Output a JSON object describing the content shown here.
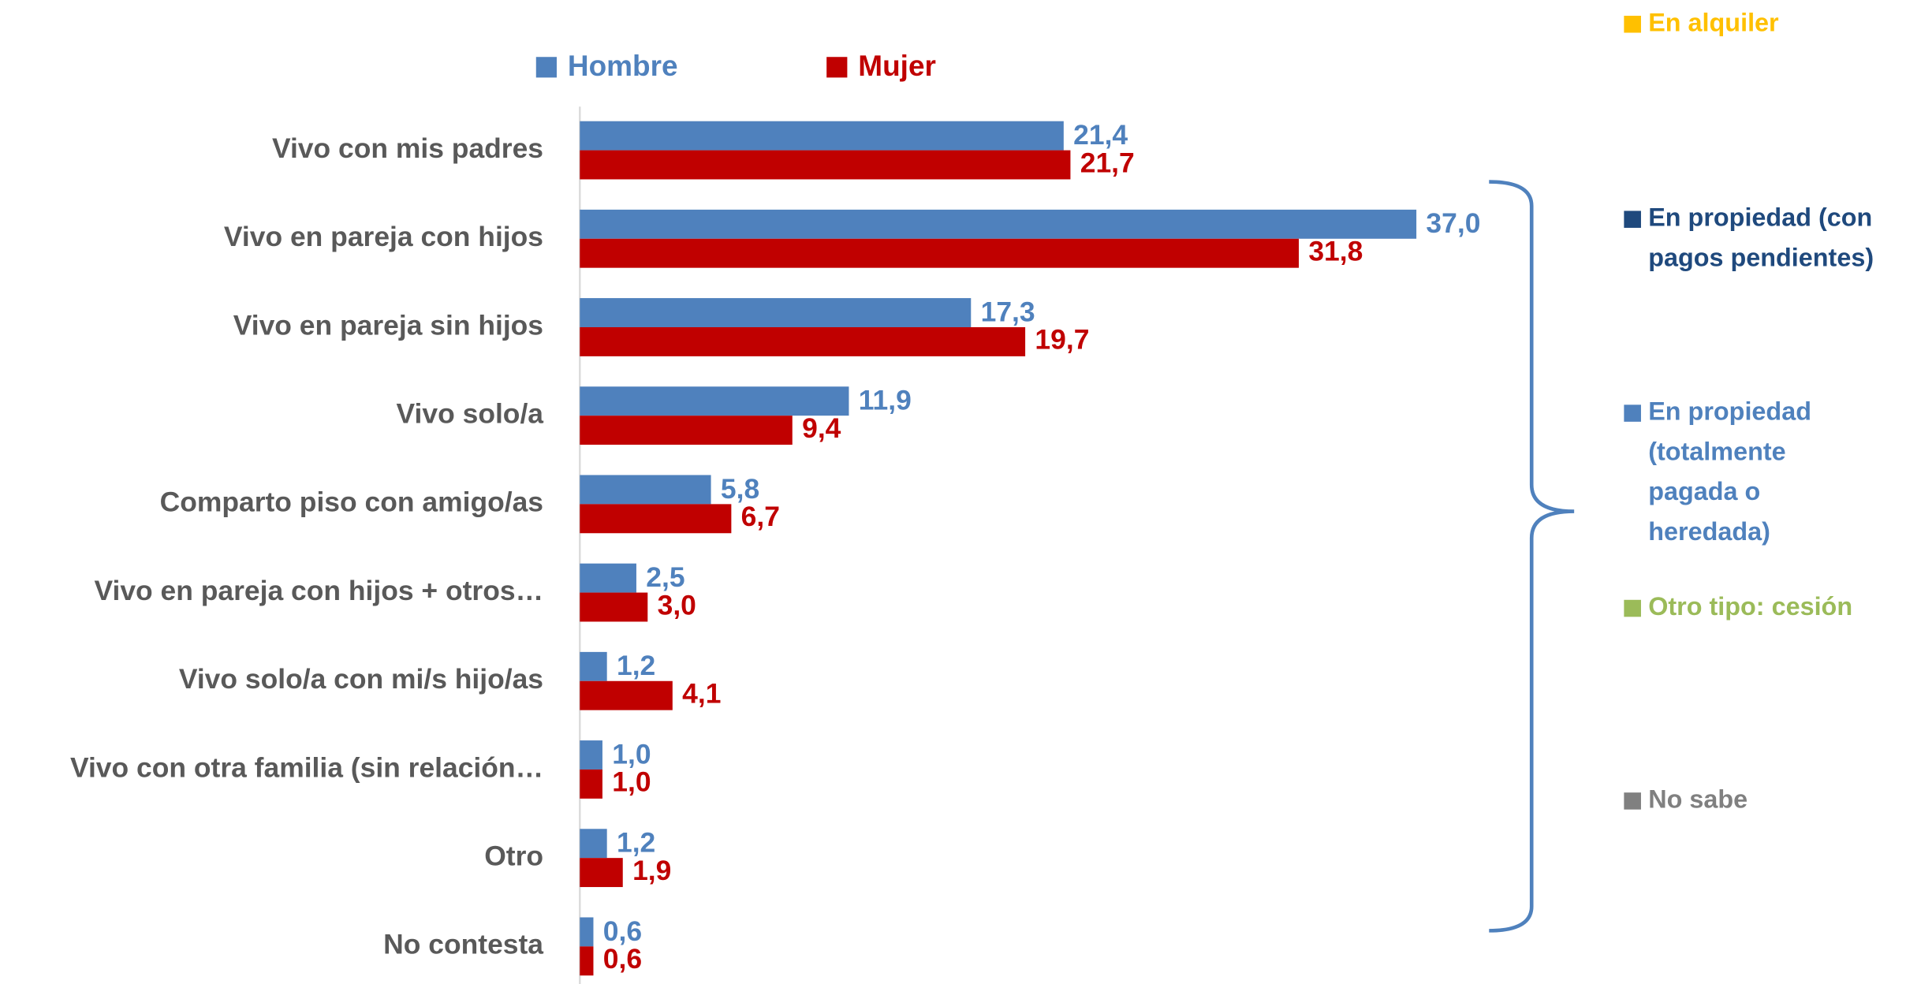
{
  "chart_data": {
    "type": "hbar",
    "categories": [
      "Vivo con mis padres",
      "Vivo en pareja con hijos",
      "Vivo en pareja sin hijos",
      "Vivo solo/a",
      "Comparto piso con amigo/as",
      "Vivo en pareja con hijos + otros…",
      "Vivo solo/a con mi/s hijo/as",
      "Vivo con otra familia (sin relación…",
      "Otro",
      "No contesta"
    ],
    "series": [
      {
        "name": "Hombre",
        "color": "#4f81bd",
        "values": [
          21.4,
          37.0,
          17.3,
          11.9,
          5.8,
          2.5,
          1.2,
          1.0,
          1.2,
          0.6
        ],
        "value_labels": [
          "21,4",
          "37,0",
          "17,3",
          "11,9",
          "5,8",
          "2,5",
          "1,2",
          "1,0",
          "1,2",
          "0,6"
        ]
      },
      {
        "name": "Mujer",
        "color": "#c00000",
        "values": [
          21.7,
          31.8,
          19.7,
          9.4,
          6.7,
          3.0,
          4.1,
          1.0,
          1.9,
          0.6
        ],
        "value_labels": [
          "21,7",
          "31,8",
          "19,7",
          "9,4",
          "6,7",
          "3,0",
          "4,1",
          "1,0",
          "1,9",
          "0,6"
        ]
      }
    ],
    "xlim": [
      0,
      40
    ],
    "legend2": [
      {
        "lines": [
          "En alquiler"
        ],
        "color": "#ffc000"
      },
      {
        "lines": [
          "En propiedad (con",
          "pagos pendientes)"
        ],
        "color": "#1f497d"
      },
      {
        "lines": [
          "En propiedad",
          "(totalmente",
          "pagada o",
          "heredada)"
        ],
        "color": "#4f81bd"
      },
      {
        "lines": [
          "Otro tipo: cesión"
        ],
        "color": "#9bbb59"
      },
      {
        "lines": [
          "No sabe"
        ],
        "color": "#808080"
      }
    ]
  }
}
